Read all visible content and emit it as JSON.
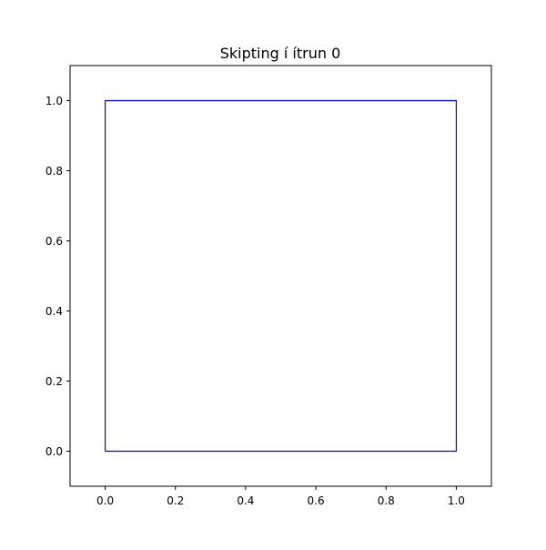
{
  "chart_data": {
    "type": "line",
    "title": "Skipting í ítrun 0",
    "xlabel": "",
    "ylabel": "",
    "xlim": [
      -0.1,
      1.1
    ],
    "ylim": [
      -0.1,
      1.1
    ],
    "grid": false,
    "x_ticks": [
      "0.0",
      "0.2",
      "0.4",
      "0.6",
      "0.8",
      "1.0"
    ],
    "y_ticks": [
      "0.0",
      "0.2",
      "0.4",
      "0.6",
      "0.8",
      "1.0"
    ],
    "series": [
      {
        "color": "#0000ff",
        "x": [
          0,
          1,
          1,
          0,
          0
        ],
        "y": [
          0,
          0,
          1,
          1,
          0
        ]
      }
    ]
  }
}
